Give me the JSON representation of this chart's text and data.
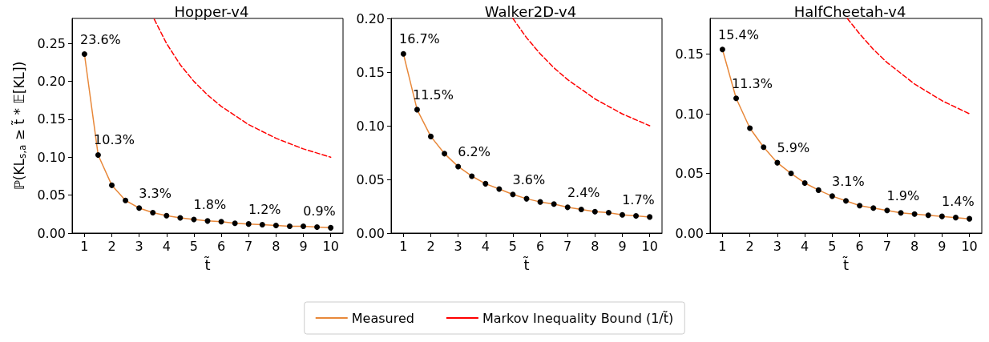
{
  "chart_data": [
    {
      "type": "line",
      "title": "Hopper-v4",
      "xlabel": "t̃",
      "ylabel": "ℙ(KL$_{s,a}$ ≥ t̃ * 𝔼[KL])",
      "xlim": [
        0.55,
        10.45
      ],
      "xticks": [
        1,
        2,
        3,
        4,
        5,
        6,
        7,
        8,
        9,
        10
      ],
      "ylim": [
        0,
        0.283
      ],
      "yticks": [
        {
          "value": 0,
          "label": "0.00"
        },
        {
          "value": 0.05,
          "label": "0.05"
        },
        {
          "value": 0.1,
          "label": "0.10"
        },
        {
          "value": 0.15,
          "label": "0.15"
        },
        {
          "value": 0.2,
          "label": "0.20"
        },
        {
          "value": 0.25,
          "label": "0.25"
        }
      ],
      "series": [
        {
          "color": "#e8883a",
          "marker": "circle",
          "line_style": "solid",
          "x": [
            1,
            1.5,
            2,
            2.5,
            3,
            3.5,
            4,
            4.5,
            5,
            5.5,
            6,
            6.5,
            7,
            7.5,
            8,
            8.5,
            9,
            9.5,
            10
          ],
          "values": [
            0.236,
            0.103,
            0.063,
            0.043,
            0.033,
            0.027,
            0.023,
            0.02,
            0.018,
            0.016,
            0.015,
            0.013,
            0.012,
            0.011,
            0.01,
            0.009,
            0.009,
            0.008,
            0.007
          ],
          "value_labels": [
            "23.6%",
            "10.3%",
            null,
            null,
            "3.3%",
            null,
            null,
            null,
            "1.8%",
            null,
            null,
            null,
            "1.2%",
            null,
            null,
            null,
            "0.9%",
            null,
            null
          ]
        },
        {
          "color": "#ff0000",
          "marker": "none",
          "line_style": "dashed",
          "x": [
            3.55,
            4,
            4.5,
            5,
            5.5,
            6,
            7,
            8,
            9,
            10
          ],
          "values": [
            0.282,
            0.25,
            0.222,
            0.2,
            0.182,
            0.167,
            0.143,
            0.125,
            0.111,
            0.1
          ]
        }
      ]
    },
    {
      "type": "line",
      "title": "Walker2D-v4",
      "xlabel": "t̃",
      "legend": "bottom",
      "xlim": [
        0.55,
        10.45
      ],
      "xticks": [
        1,
        2,
        3,
        4,
        5,
        6,
        7,
        8,
        9,
        10
      ],
      "ylim": [
        0,
        0.2
      ],
      "yticks": [
        {
          "value": 0,
          "label": "0.00"
        },
        {
          "value": 0.05,
          "label": "0.05"
        },
        {
          "value": 0.1,
          "label": "0.10"
        },
        {
          "value": 0.15,
          "label": "0.15"
        },
        {
          "value": 0.2,
          "label": "0.20"
        }
      ],
      "series": [
        {
          "name": "Measured",
          "color": "#e8883a",
          "marker": "circle",
          "line_style": "solid",
          "x": [
            1,
            1.5,
            2,
            2.5,
            3,
            3.5,
            4,
            4.5,
            5,
            5.5,
            6,
            6.5,
            7,
            7.5,
            8,
            8.5,
            9,
            9.5,
            10
          ],
          "values": [
            0.167,
            0.115,
            0.09,
            0.074,
            0.062,
            0.053,
            0.046,
            0.041,
            0.036,
            0.032,
            0.029,
            0.027,
            0.024,
            0.022,
            0.02,
            0.019,
            0.017,
            0.016,
            0.015
          ],
          "value_labels": [
            "16.7%",
            "11.5%",
            null,
            null,
            "6.2%",
            null,
            null,
            null,
            "3.6%",
            null,
            null,
            null,
            "2.4%",
            null,
            null,
            null,
            "1.7%",
            null,
            null
          ]
        },
        {
          "name": "Markov Inequality Bound (1/t̃)",
          "color": "#ff0000",
          "marker": "none",
          "line_style": "dashed",
          "x": [
            5,
            5.5,
            6,
            6.5,
            7,
            8,
            9,
            10
          ],
          "values": [
            0.2,
            0.182,
            0.167,
            0.154,
            0.143,
            0.125,
            0.111,
            0.1
          ]
        }
      ]
    },
    {
      "type": "line",
      "title": "HalfCheetah-v4",
      "xlabel": "t̃",
      "xlim": [
        0.55,
        10.45
      ],
      "xticks": [
        1,
        2,
        3,
        4,
        5,
        6,
        7,
        8,
        9,
        10
      ],
      "ylim": [
        0,
        0.18
      ],
      "yticks": [
        {
          "value": 0,
          "label": "0.00"
        },
        {
          "value": 0.05,
          "label": "0.05"
        },
        {
          "value": 0.1,
          "label": "0.10"
        },
        {
          "value": 0.15,
          "label": "0.15"
        }
      ],
      "series": [
        {
          "color": "#e8883a",
          "marker": "circle",
          "line_style": "solid",
          "x": [
            1,
            1.5,
            2,
            2.5,
            3,
            3.5,
            4,
            4.5,
            5,
            5.5,
            6,
            6.5,
            7,
            7.5,
            8,
            8.5,
            9,
            9.5,
            10
          ],
          "values": [
            0.154,
            0.113,
            0.088,
            0.072,
            0.059,
            0.05,
            0.042,
            0.036,
            0.031,
            0.027,
            0.023,
            0.021,
            0.019,
            0.017,
            0.016,
            0.015,
            0.014,
            0.013,
            0.012
          ],
          "value_labels": [
            "15.4%",
            "11.3%",
            null,
            null,
            "5.9%",
            null,
            null,
            null,
            "3.1%",
            null,
            null,
            null,
            "1.9%",
            null,
            null,
            null,
            "1.4%",
            null,
            null
          ]
        },
        {
          "color": "#ff0000",
          "marker": "none",
          "line_style": "dashed",
          "x": [
            5.55,
            6,
            6.5,
            7,
            8,
            9,
            10
          ],
          "values": [
            0.18,
            0.167,
            0.154,
            0.143,
            0.125,
            0.111,
            0.1
          ]
        }
      ]
    }
  ]
}
